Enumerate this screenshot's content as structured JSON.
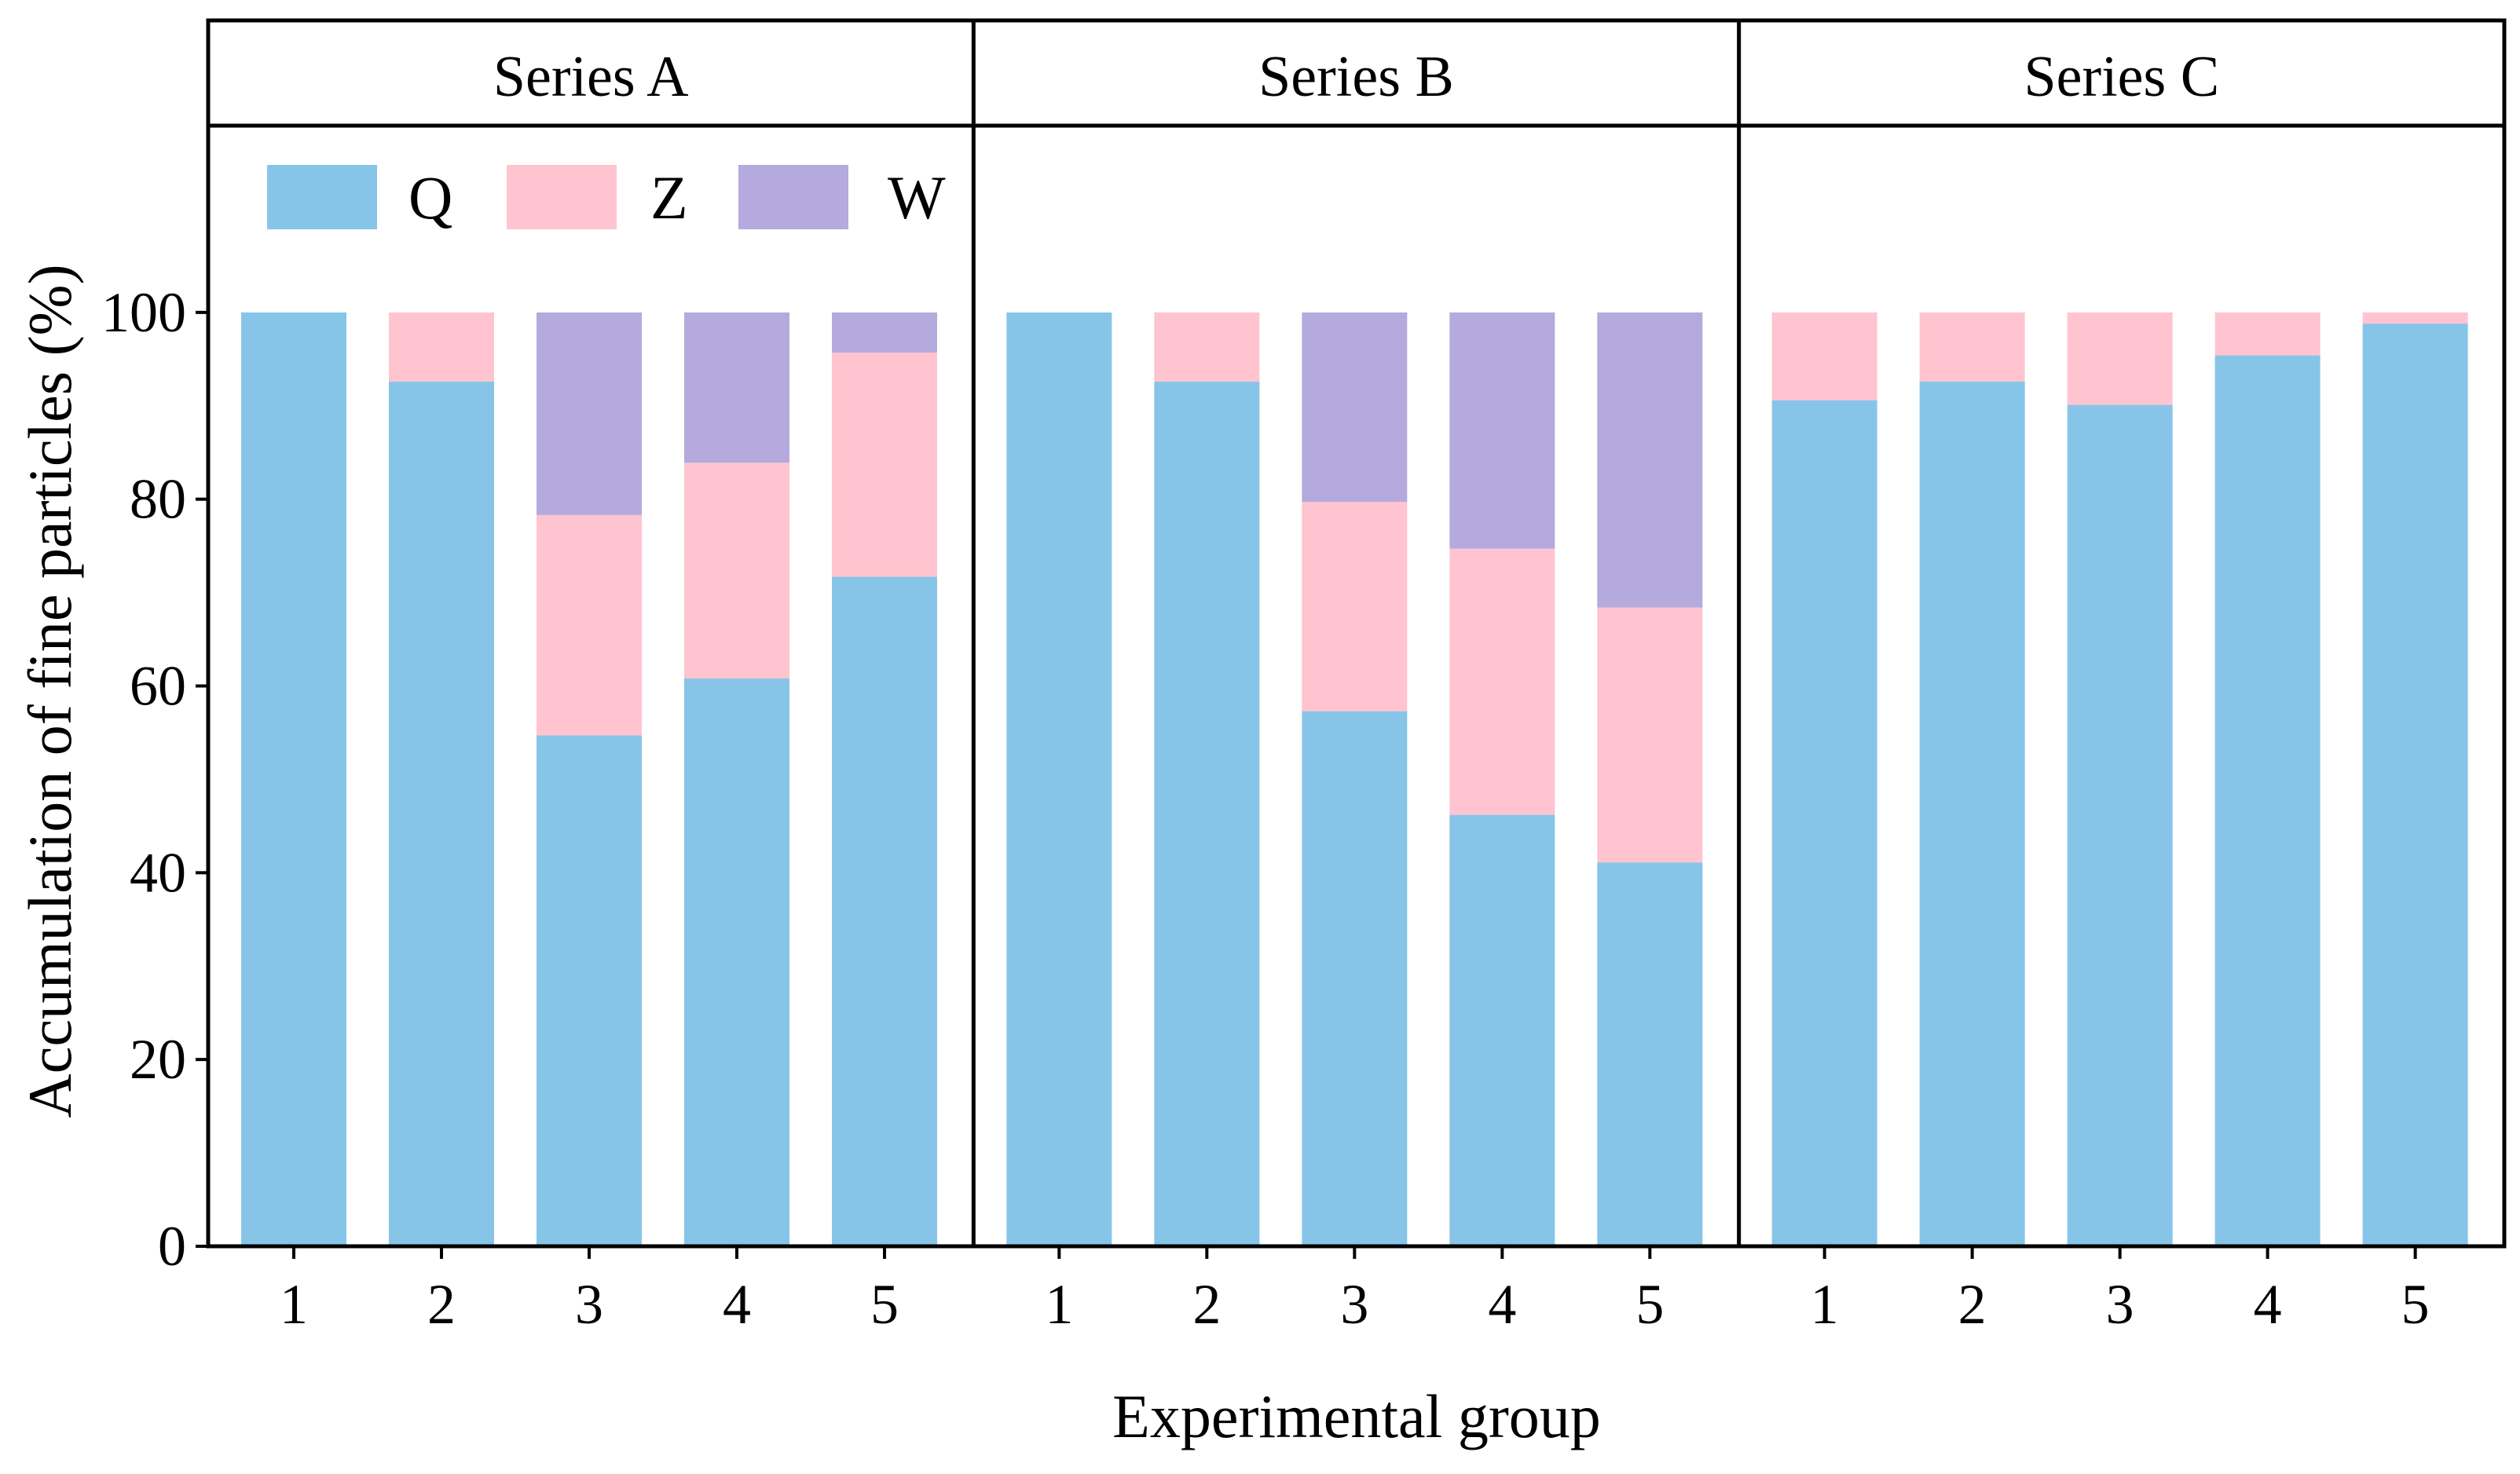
{
  "chart_data": {
    "type": "bar",
    "stacked": true,
    "xlabel": "Experimental group",
    "ylabel": "Accumulation of fine particles (%)",
    "ylim": [
      0,
      120
    ],
    "yticks": [
      0,
      20,
      40,
      60,
      80,
      100
    ],
    "categories": [
      "1",
      "2",
      "3",
      "4",
      "5"
    ],
    "legend": [
      {
        "name": "Q",
        "color": "#87C5E8"
      },
      {
        "name": "Z",
        "color": "#FFC4CF"
      },
      {
        "name": "W",
        "color": "#B4AADD"
      }
    ],
    "panels": [
      {
        "title": "Series A",
        "series": [
          {
            "name": "Q",
            "values": [
              100,
              92.6,
              54.7,
              60.8,
              71.7
            ]
          },
          {
            "name": "Z",
            "values": [
              0,
              7.4,
              23.6,
              23.1,
              24.0
            ]
          },
          {
            "name": "W",
            "values": [
              0,
              0,
              21.7,
              16.1,
              4.3
            ]
          }
        ]
      },
      {
        "title": "Series B",
        "series": [
          {
            "name": "Q",
            "values": [
              100,
              92.6,
              57.3,
              46.2,
              41.1
            ]
          },
          {
            "name": "Z",
            "values": [
              0,
              7.4,
              22.4,
              28.5,
              27.3
            ]
          },
          {
            "name": "W",
            "values": [
              0,
              0,
              20.3,
              25.3,
              31.6
            ]
          }
        ]
      },
      {
        "title": "Series C",
        "series": [
          {
            "name": "Q",
            "values": [
              90.6,
              92.6,
              90.1,
              95.4,
              98.8
            ]
          },
          {
            "name": "Z",
            "values": [
              9.4,
              7.4,
              9.9,
              4.6,
              1.2
            ]
          },
          {
            "name": "W",
            "values": [
              0,
              0,
              0,
              0,
              0
            ]
          }
        ]
      }
    ]
  }
}
